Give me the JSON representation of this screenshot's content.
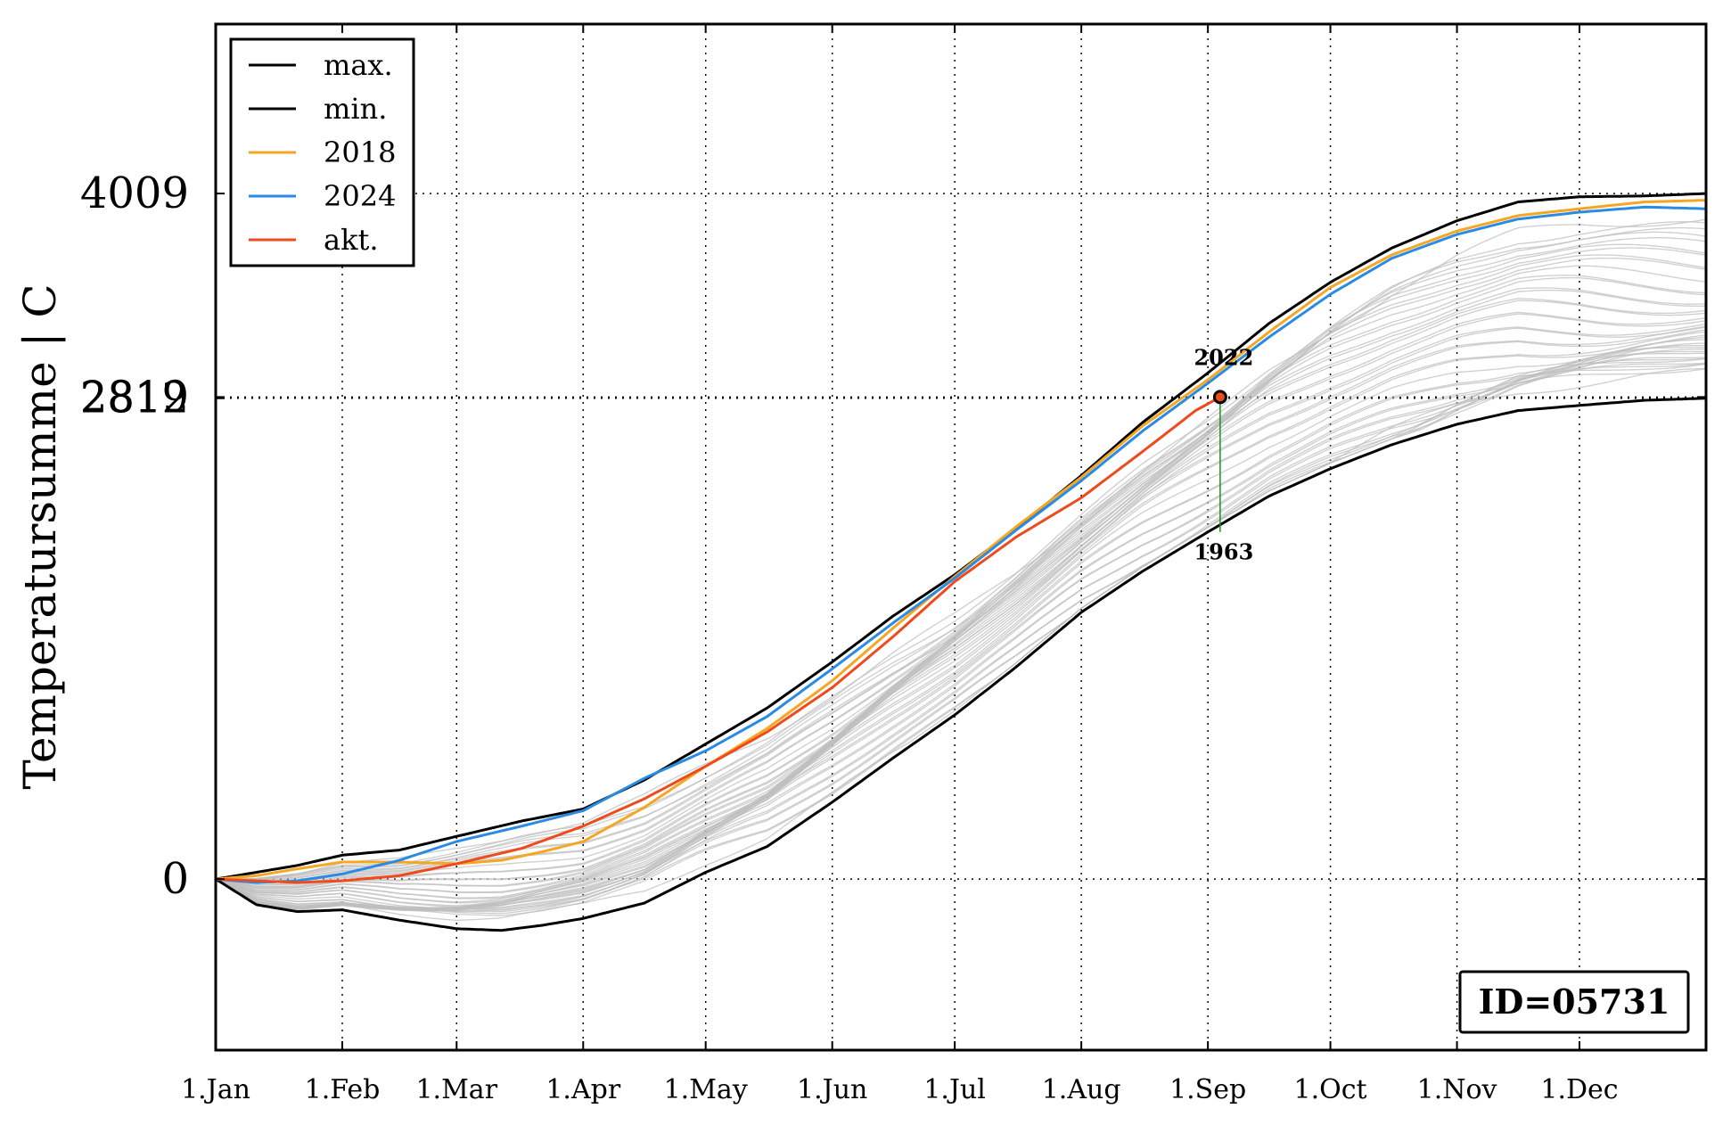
{
  "chart_data": {
    "type": "line",
    "title": "",
    "xlabel": "",
    "ylabel": "Temperatursumme | C",
    "x_tick_labels": [
      "1.Jan",
      "1.Feb",
      "1.Mar",
      "1.Apr",
      "1.May",
      "1.Jun",
      "1.Jul",
      "1.Aug",
      "1.Sep",
      "1.Oct",
      "1.Nov",
      "1.Dec"
    ],
    "x_tick_days": [
      0,
      31,
      59,
      90,
      120,
      151,
      181,
      212,
      243,
      273,
      304,
      334
    ],
    "xlim": [
      0,
      365
    ],
    "ylim": [
      -1000,
      5000
    ],
    "y_tick_labels": [
      "0",
      "2812",
      "2819",
      "4009"
    ],
    "y_tick_values": [
      0,
      2812,
      2819,
      4009
    ],
    "grid": true,
    "legend_placement": "top-left",
    "colors": {
      "max": "#000000",
      "min": "#000000",
      "y2018": "#f5a623",
      "y2024": "#2a8be4",
      "akt": "#ef4a1c",
      "background_years": "#bdbdbd",
      "marker_line": "#228b22"
    },
    "series": [
      {
        "name": "max.",
        "color_key": "max",
        "points": [
          [
            0,
            0
          ],
          [
            10,
            40
          ],
          [
            20,
            80
          ],
          [
            31,
            140
          ],
          [
            45,
            170
          ],
          [
            59,
            250
          ],
          [
            75,
            340
          ],
          [
            90,
            410
          ],
          [
            105,
            580
          ],
          [
            120,
            790
          ],
          [
            135,
            1000
          ],
          [
            151,
            1270
          ],
          [
            166,
            1540
          ],
          [
            181,
            1780
          ],
          [
            196,
            2050
          ],
          [
            212,
            2360
          ],
          [
            227,
            2670
          ],
          [
            243,
            2960
          ],
          [
            258,
            3250
          ],
          [
            273,
            3490
          ],
          [
            288,
            3690
          ],
          [
            304,
            3850
          ],
          [
            319,
            3960
          ],
          [
            334,
            3990
          ],
          [
            350,
            3995
          ],
          [
            365,
            4009
          ]
        ]
      },
      {
        "name": "min.",
        "color_key": "min",
        "points": [
          [
            0,
            0
          ],
          [
            10,
            -150
          ],
          [
            20,
            -190
          ],
          [
            31,
            -180
          ],
          [
            45,
            -240
          ],
          [
            59,
            -290
          ],
          [
            70,
            -300
          ],
          [
            80,
            -270
          ],
          [
            90,
            -230
          ],
          [
            105,
            -140
          ],
          [
            120,
            40
          ],
          [
            135,
            190
          ],
          [
            151,
            450
          ],
          [
            166,
            710
          ],
          [
            181,
            960
          ],
          [
            196,
            1240
          ],
          [
            212,
            1560
          ],
          [
            227,
            1800
          ],
          [
            243,
            2030
          ],
          [
            258,
            2240
          ],
          [
            273,
            2400
          ],
          [
            288,
            2540
          ],
          [
            304,
            2660
          ],
          [
            319,
            2740
          ],
          [
            334,
            2770
          ],
          [
            350,
            2800
          ],
          [
            365,
            2812
          ]
        ]
      },
      {
        "name": "2018",
        "color_key": "y2018",
        "points": [
          [
            0,
            0
          ],
          [
            10,
            20
          ],
          [
            20,
            60
          ],
          [
            31,
            100
          ],
          [
            45,
            100
          ],
          [
            59,
            90
          ],
          [
            70,
            110
          ],
          [
            80,
            160
          ],
          [
            90,
            220
          ],
          [
            105,
            420
          ],
          [
            120,
            660
          ],
          [
            135,
            880
          ],
          [
            151,
            1160
          ],
          [
            166,
            1470
          ],
          [
            181,
            1770
          ],
          [
            196,
            2060
          ],
          [
            212,
            2350
          ],
          [
            227,
            2650
          ],
          [
            243,
            2920
          ],
          [
            258,
            3200
          ],
          [
            273,
            3460
          ],
          [
            288,
            3650
          ],
          [
            304,
            3790
          ],
          [
            319,
            3880
          ],
          [
            334,
            3920
          ],
          [
            350,
            3960
          ],
          [
            365,
            3970
          ]
        ]
      },
      {
        "name": "2024",
        "color_key": "y2024",
        "points": [
          [
            0,
            0
          ],
          [
            10,
            -20
          ],
          [
            20,
            -10
          ],
          [
            31,
            30
          ],
          [
            45,
            110
          ],
          [
            59,
            220
          ],
          [
            75,
            310
          ],
          [
            90,
            400
          ],
          [
            105,
            590
          ],
          [
            120,
            750
          ],
          [
            135,
            950
          ],
          [
            151,
            1230
          ],
          [
            166,
            1500
          ],
          [
            181,
            1760
          ],
          [
            196,
            2040
          ],
          [
            212,
            2330
          ],
          [
            227,
            2620
          ],
          [
            243,
            2900
          ],
          [
            258,
            3170
          ],
          [
            273,
            3420
          ],
          [
            288,
            3630
          ],
          [
            304,
            3770
          ],
          [
            319,
            3860
          ],
          [
            334,
            3900
          ],
          [
            350,
            3930
          ],
          [
            365,
            3920
          ]
        ]
      },
      {
        "name": "akt.",
        "color_key": "akt",
        "points": [
          [
            0,
            0
          ],
          [
            10,
            -10
          ],
          [
            20,
            -20
          ],
          [
            31,
            -10
          ],
          [
            45,
            20
          ],
          [
            59,
            90
          ],
          [
            75,
            180
          ],
          [
            90,
            310
          ],
          [
            105,
            470
          ],
          [
            120,
            660
          ],
          [
            135,
            860
          ],
          [
            151,
            1120
          ],
          [
            166,
            1420
          ],
          [
            181,
            1740
          ],
          [
            196,
            2000
          ],
          [
            212,
            2230
          ],
          [
            227,
            2500
          ],
          [
            240,
            2740
          ],
          [
            246,
            2819
          ]
        ]
      }
    ],
    "background_years": {
      "count": 40,
      "final_range": [
        2880,
        3760
      ]
    },
    "annotations": {
      "current_day": 246,
      "current_value": 2819,
      "upper_label": "2022",
      "lower_label": "1963",
      "lower_value": 2030
    },
    "id_box": "ID=05731"
  }
}
